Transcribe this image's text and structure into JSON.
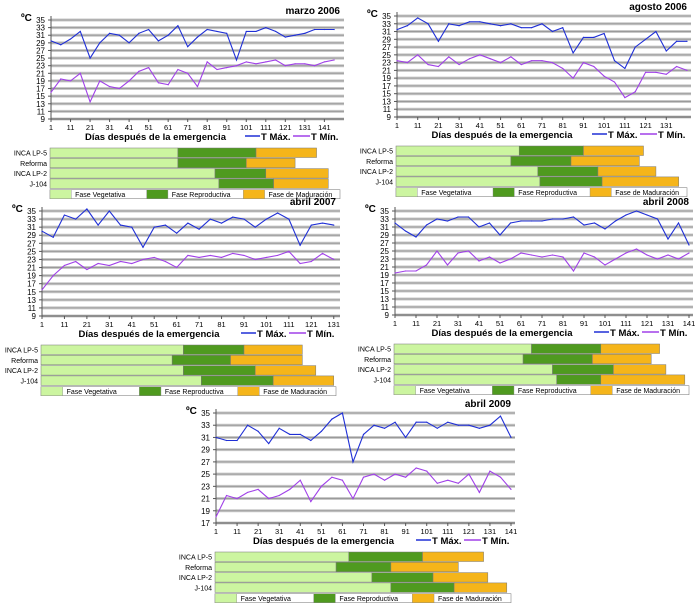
{
  "common": {
    "unit_label": "ºC",
    "xlabel": "Días después de la emergencia",
    "legend_max": "T Máx.",
    "legend_min": "T Mín.",
    "varieties": [
      "INCA LP-5",
      "Reforma",
      "INCA LP-2",
      "J-104"
    ],
    "phase_labels": [
      "Fase Vegetativa",
      "Fase Reproductiva",
      "Fase de Maduración"
    ],
    "colors": {
      "tmax": "#1f2fd6",
      "tmin": "#a040e8",
      "vegetative": "#ccf5a0",
      "reproductive": "#4f9a1f",
      "maturation": "#f5b51a",
      "grid": "#9a9a9a"
    }
  },
  "chart_data": [
    {
      "type": "line",
      "title": "marzo 2006",
      "ylim": [
        9,
        35
      ],
      "yticks": [
        9,
        11,
        13,
        15,
        17,
        19,
        21,
        23,
        25,
        27,
        29,
        31,
        33,
        35
      ],
      "xlim": [
        1,
        149
      ],
      "xticks": [
        1,
        11,
        21,
        31,
        41,
        51,
        61,
        71,
        81,
        91,
        101,
        111,
        121,
        131,
        141
      ],
      "grid": true,
      "legend": "bottom-right",
      "days": [
        1,
        6,
        11,
        16,
        21,
        26,
        31,
        36,
        41,
        46,
        51,
        56,
        61,
        66,
        71,
        76,
        81,
        86,
        91,
        96,
        101,
        106,
        111,
        116,
        121,
        126,
        131,
        136,
        141,
        146
      ],
      "series": [
        {
          "name": "T Máx.",
          "values": [
            29.5,
            28.5,
            30,
            32,
            25,
            29,
            31.5,
            31,
            29,
            31.5,
            32.5,
            29.5,
            31,
            33.5,
            28,
            30.5,
            32.5,
            32,
            31.5,
            24.5,
            32,
            32,
            33,
            32,
            30.5,
            31,
            31.5,
            32.5,
            32.5,
            32.5
          ]
        },
        {
          "name": "T Mín.",
          "values": [
            16,
            19.5,
            19,
            21,
            13.5,
            19,
            17.5,
            17,
            19,
            21.5,
            22.5,
            18.5,
            18,
            22,
            21,
            17.5,
            24,
            22,
            22.5,
            23,
            24,
            23.5,
            24,
            24.5,
            23,
            23.5,
            23.5,
            23,
            24,
            24.5
          ]
        }
      ],
      "phases_days": [
        [
          66,
          106,
          137
        ],
        [
          66,
          101,
          126
        ],
        [
          85,
          111,
          143
        ],
        [
          87,
          115,
          143
        ]
      ]
    },
    {
      "type": "line",
      "title": "agosto 2006",
      "ylim": [
        9,
        35
      ],
      "yticks": [
        9,
        11,
        13,
        15,
        17,
        19,
        21,
        23,
        25,
        27,
        29,
        31,
        33,
        35
      ],
      "xlim": [
        1,
        141
      ],
      "xticks": [
        1,
        11,
        21,
        31,
        41,
        51,
        61,
        71,
        81,
        91,
        101,
        111,
        121,
        131
      ],
      "grid": true,
      "legend": "bottom-right",
      "days": [
        1,
        6,
        11,
        16,
        21,
        26,
        31,
        36,
        41,
        46,
        51,
        56,
        61,
        66,
        71,
        76,
        81,
        86,
        91,
        96,
        101,
        106,
        111,
        116,
        121,
        126,
        131,
        136,
        141
      ],
      "series": [
        {
          "name": "T Máx.",
          "values": [
            31.5,
            32.5,
            34.5,
            33,
            28.5,
            33,
            32.5,
            33.5,
            33.5,
            33,
            32.5,
            33,
            32,
            32,
            33,
            31,
            32,
            25.5,
            29.5,
            29.5,
            30.5,
            23.5,
            21.5,
            27,
            29,
            31,
            26,
            28.5,
            28.5
          ]
        },
        {
          "name": "T Mín.",
          "values": [
            23.5,
            23,
            25,
            22.5,
            22,
            24.5,
            22.5,
            24,
            25,
            24,
            23,
            24.5,
            22.5,
            23.5,
            23.5,
            23,
            21.5,
            19,
            23,
            22,
            19.5,
            18,
            14,
            15.5,
            20.5,
            20.5,
            20,
            22,
            21
          ]
        }
      ],
      "phases_days": [
        [
          60,
          91,
          120
        ],
        [
          56,
          85,
          118
        ],
        [
          69,
          98,
          126
        ],
        [
          70,
          100,
          137
        ]
      ]
    },
    {
      "type": "line",
      "title": "abril 2007",
      "ylim": [
        9,
        35
      ],
      "yticks": [
        9,
        11,
        13,
        15,
        17,
        19,
        21,
        23,
        25,
        27,
        29,
        31,
        33,
        35
      ],
      "xlim": [
        1,
        132
      ],
      "xticks": [
        1,
        11,
        21,
        31,
        41,
        51,
        61,
        71,
        81,
        91,
        101,
        111,
        121,
        131
      ],
      "grid": true,
      "legend": "bottom-right",
      "days": [
        1,
        6,
        11,
        16,
        21,
        26,
        31,
        36,
        41,
        46,
        51,
        56,
        61,
        66,
        71,
        76,
        81,
        86,
        91,
        96,
        101,
        106,
        111,
        116,
        121,
        126,
        131
      ],
      "series": [
        {
          "name": "T Máx.",
          "values": [
            30,
            28.5,
            34,
            33,
            35.5,
            31.5,
            35,
            31.5,
            31,
            26,
            31,
            31.5,
            29.5,
            32,
            30.5,
            33,
            32,
            33.5,
            33,
            31,
            33,
            34.5,
            33,
            26.5,
            31.5,
            32,
            31.5
          ]
        },
        {
          "name": "T Mín.",
          "values": [
            15.5,
            19,
            21.5,
            22.5,
            20.5,
            22,
            21.5,
            22.5,
            22,
            23,
            23.5,
            22.5,
            21,
            24,
            23.5,
            24,
            23.5,
            24.5,
            24,
            23,
            23.5,
            24,
            25,
            22,
            22.5,
            24.5,
            23
          ]
        }
      ],
      "phases_days": [
        [
          64,
          91,
          117
        ],
        [
          59,
          85,
          117
        ],
        [
          64,
          96,
          123
        ],
        [
          72,
          104,
          131
        ]
      ]
    },
    {
      "type": "line",
      "title": "abril 2008",
      "ylim": [
        9,
        35
      ],
      "yticks": [
        9,
        11,
        13,
        15,
        17,
        19,
        21,
        23,
        25,
        27,
        29,
        31,
        33,
        35
      ],
      "xlim": [
        1,
        141
      ],
      "xticks": [
        1,
        11,
        21,
        31,
        41,
        51,
        61,
        71,
        81,
        91,
        101,
        111,
        121,
        131,
        141
      ],
      "grid": true,
      "legend": "bottom-right",
      "days": [
        1,
        6,
        11,
        16,
        21,
        26,
        31,
        36,
        41,
        46,
        51,
        56,
        61,
        66,
        71,
        76,
        81,
        86,
        91,
        96,
        101,
        106,
        111,
        116,
        121,
        126,
        131,
        136,
        141
      ],
      "series": [
        {
          "name": "T Máx.",
          "values": [
            32,
            30,
            28.5,
            31.5,
            33,
            32.5,
            33.5,
            33.5,
            31,
            32,
            29,
            32,
            32.5,
            32.5,
            32.5,
            33,
            33,
            33.5,
            31.5,
            32,
            30.5,
            32.5,
            34,
            35,
            34,
            33,
            28,
            32,
            26.5
          ]
        },
        {
          "name": "T Mín.",
          "values": [
            19.5,
            20,
            20,
            21.5,
            25,
            21.5,
            24.5,
            25,
            22.5,
            23.5,
            22,
            23,
            24.5,
            24,
            23.5,
            24,
            23.5,
            20,
            24.5,
            23.5,
            21.5,
            23,
            24.5,
            25.5,
            24,
            23,
            24,
            23,
            24.5
          ]
        }
      ],
      "phases_days": [
        [
          66,
          99,
          127
        ],
        [
          62,
          95,
          123
        ],
        [
          76,
          105,
          130
        ],
        [
          78,
          99,
          139
        ]
      ]
    },
    {
      "type": "line",
      "title": "abril 2009",
      "ylim": [
        17,
        35
      ],
      "yticks": [
        17,
        19,
        21,
        23,
        25,
        27,
        29,
        31,
        33,
        35
      ],
      "xlim": [
        1,
        141
      ],
      "xticks": [
        1,
        11,
        21,
        31,
        41,
        51,
        61,
        71,
        81,
        91,
        101,
        111,
        121,
        131,
        141
      ],
      "grid": true,
      "legend": "bottom-right",
      "days": [
        1,
        6,
        11,
        16,
        21,
        26,
        31,
        36,
        41,
        46,
        51,
        56,
        61,
        66,
        71,
        76,
        81,
        86,
        91,
        96,
        101,
        106,
        111,
        116,
        121,
        126,
        131,
        136,
        141
      ],
      "series": [
        {
          "name": "T Máx.",
          "values": [
            31,
            30.5,
            30.5,
            33,
            32,
            30,
            32.5,
            31.5,
            31.5,
            30.5,
            32,
            34,
            35,
            27,
            31.5,
            33,
            32.5,
            33.5,
            31,
            33.5,
            33.5,
            32.5,
            33.5,
            33,
            33,
            32.5,
            33,
            34.5,
            31
          ]
        },
        {
          "name": "T Mín.",
          "values": [
            18,
            21.5,
            21,
            22,
            22.5,
            21,
            21.5,
            22.5,
            24,
            20.5,
            23,
            24.5,
            24,
            21,
            24.5,
            25,
            24,
            25,
            24.5,
            26,
            25.5,
            23.5,
            24,
            23.5,
            25,
            22,
            25.5,
            24.5,
            22.5
          ]
        }
      ],
      "phases_days": [
        [
          64,
          99,
          128
        ],
        [
          58,
          84,
          116
        ],
        [
          75,
          104,
          130
        ],
        [
          84,
          114,
          139
        ]
      ]
    }
  ]
}
